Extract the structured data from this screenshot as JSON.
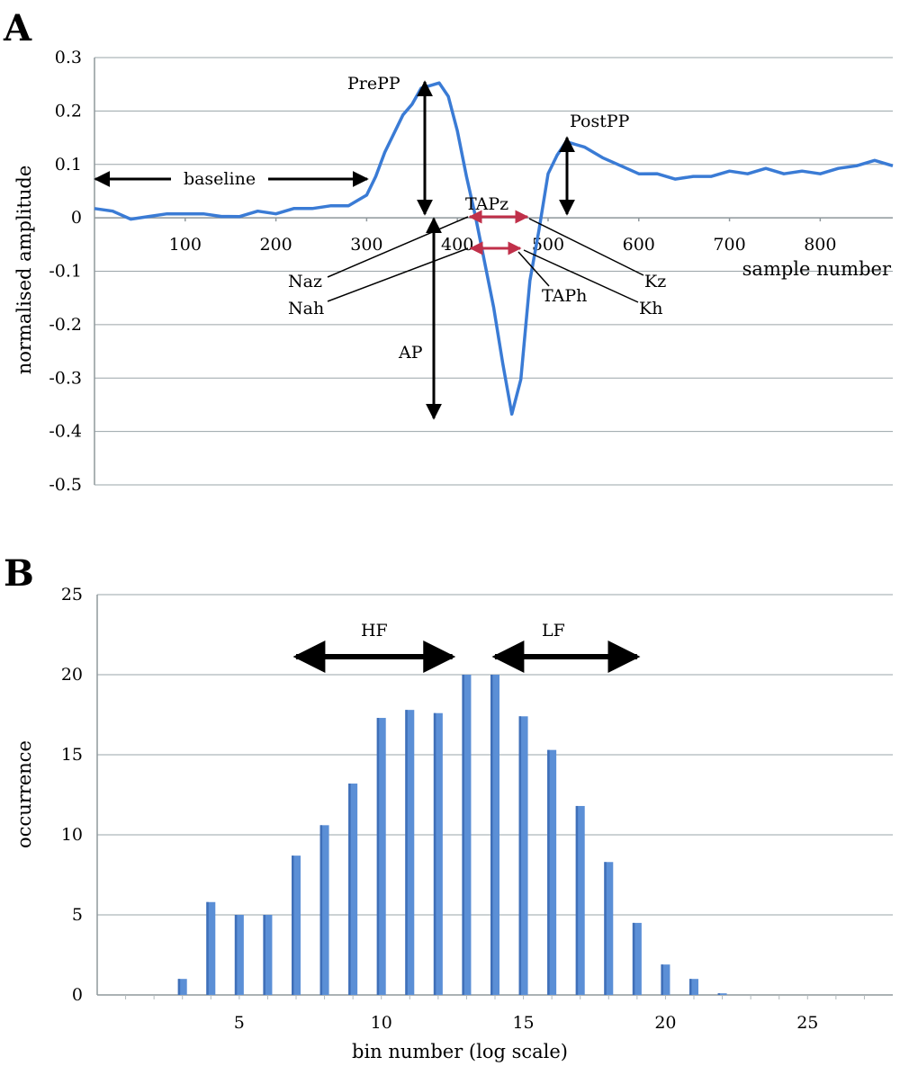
{
  "chart_data": [
    {
      "panel": "A",
      "type": "line",
      "title": "",
      "xlabel": "sample number",
      "ylabel": "normalised amplitude",
      "xlim": [
        0,
        880
      ],
      "ylim": [
        -0.5,
        0.3
      ],
      "xticks": [
        100,
        200,
        300,
        400,
        500,
        600,
        700,
        800
      ],
      "yticks": [
        0.3,
        0.2,
        0.1,
        0,
        -0.1,
        -0.2,
        -0.3,
        -0.4,
        -0.5
      ],
      "ytick_labels": [
        "0.3",
        "0.2",
        "0.1",
        "0",
        "-0.1",
        "-0.2",
        "-0.3",
        "-0.4",
        "-0.5"
      ],
      "grid": true,
      "line_color": "#3a7bd5",
      "series": [
        {
          "x": [
            0,
            20,
            40,
            60,
            80,
            100,
            120,
            140,
            160,
            180,
            200,
            220,
            240,
            260,
            280,
            300,
            310,
            320,
            330,
            340,
            350,
            360,
            370,
            380,
            390,
            400,
            410,
            420,
            430,
            440,
            450,
            460,
            470,
            480,
            490,
            500,
            510,
            520,
            530,
            540,
            560,
            580,
            600,
            620,
            640,
            660,
            680,
            700,
            720,
            740,
            760,
            780,
            800,
            820,
            840,
            860,
            880
          ],
          "y": [
            0.02,
            0.01,
            0.0,
            0.0,
            0.01,
            0.005,
            0.01,
            0.0,
            0.005,
            0.01,
            0.01,
            0.015,
            0.02,
            0.02,
            0.025,
            0.04,
            0.08,
            0.12,
            0.16,
            0.19,
            0.215,
            0.24,
            0.25,
            0.25,
            0.23,
            0.16,
            0.08,
            0.0,
            -0.08,
            -0.17,
            -0.27,
            -0.37,
            -0.3,
            -0.12,
            -0.02,
            0.08,
            0.12,
            0.14,
            0.14,
            0.13,
            0.115,
            0.095,
            0.085,
            0.08,
            0.075,
            0.075,
            0.08,
            0.085,
            0.085,
            0.09,
            0.085,
            0.085,
            0.085,
            0.09,
            0.1,
            0.105,
            0.1
          ]
        }
      ],
      "annotations": [
        {
          "text": "baseline"
        },
        {
          "text": "PrePP"
        },
        {
          "text": "PostPP"
        },
        {
          "text": "TAPz"
        },
        {
          "text": "TAPh"
        },
        {
          "text": "Naz"
        },
        {
          "text": "Nah"
        },
        {
          "text": "Kz"
        },
        {
          "text": "Kh"
        },
        {
          "text": "AP"
        }
      ]
    },
    {
      "panel": "B",
      "type": "bar",
      "title": "",
      "xlabel": "bin number (log scale)",
      "ylabel": "occurrence",
      "xlim": [
        0,
        28
      ],
      "ylim": [
        0,
        25
      ],
      "xticks": [
        5,
        10,
        15,
        20,
        25
      ],
      "yticks": [
        0,
        5,
        10,
        15,
        20,
        25
      ],
      "grid": true,
      "bar_color": "#5b8fd6",
      "categories": [
        3,
        4,
        5,
        6,
        7,
        8,
        9,
        10,
        11,
        12,
        13,
        14,
        15,
        16,
        17,
        18,
        19,
        20,
        21,
        22
      ],
      "values": [
        1.0,
        5.8,
        5.0,
        5.0,
        8.7,
        10.6,
        13.2,
        17.3,
        17.8,
        17.6,
        20.0,
        20.0,
        17.4,
        15.3,
        11.8,
        8.3,
        4.5,
        1.9,
        1.0,
        0.1
      ],
      "annotations": [
        {
          "text": "HF",
          "from": 7,
          "to": 12.5
        },
        {
          "text": "LF",
          "from": 14,
          "to": 19
        }
      ]
    }
  ]
}
